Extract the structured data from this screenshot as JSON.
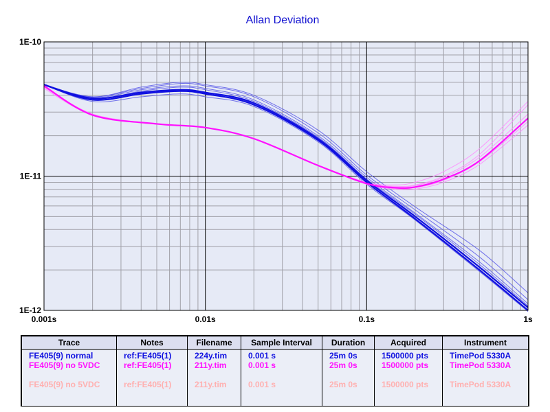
{
  "chart_data": {
    "type": "line",
    "title": "Allan Deviation",
    "x_scale": "log",
    "y_scale": "log",
    "xlim": [
      0.001,
      1
    ],
    "ylim": [
      1e-12,
      1e-10
    ],
    "x_ticks": [
      {
        "value": 0.001,
        "label": "0.001s"
      },
      {
        "value": 0.01,
        "label": "0.01s"
      },
      {
        "value": 0.1,
        "label": "0.1s"
      },
      {
        "value": 1,
        "label": "1s"
      }
    ],
    "y_ticks": [
      {
        "value": 1e-10,
        "label": "1E-10"
      },
      {
        "value": 1e-11,
        "label": "1E-11"
      },
      {
        "value": 1e-12,
        "label": "1E-12"
      }
    ],
    "grid": true,
    "colors": {
      "blue": "#1010e0",
      "blue_light": "#5a5ae8",
      "magenta": "#ff10ff",
      "magenta_light": "#ff88ff",
      "plot_bg": "#e6eaf6",
      "grid_major": "#000000",
      "grid_minor": "#a0a0a8"
    },
    "series": [
      {
        "group": "blue",
        "bold": true,
        "points": [
          [
            0.001,
            4.8e-11
          ],
          [
            0.002,
            3.8e-11
          ],
          [
            0.004,
            4.2e-11
          ],
          [
            0.007,
            4.4e-11
          ],
          [
            0.01,
            4.2e-11
          ],
          [
            0.02,
            3.5e-11
          ],
          [
            0.05,
            1.9e-11
          ],
          [
            0.1,
            9.3e-12
          ],
          [
            0.2,
            5e-12
          ],
          [
            0.5,
            2.1e-12
          ],
          [
            1,
            1.05e-12
          ]
        ]
      },
      {
        "group": "blue",
        "bold": true,
        "points": [
          [
            0.001,
            4.8e-11
          ],
          [
            0.002,
            3.7e-11
          ],
          [
            0.004,
            4.1e-11
          ],
          [
            0.007,
            4.3e-11
          ],
          [
            0.01,
            4.1e-11
          ],
          [
            0.02,
            3.4e-11
          ],
          [
            0.05,
            1.85e-11
          ],
          [
            0.1,
            9e-12
          ],
          [
            0.2,
            4.8e-12
          ],
          [
            0.5,
            2e-12
          ],
          [
            1,
            1e-12
          ]
        ]
      },
      {
        "group": "blue",
        "bold": false,
        "points": [
          [
            0.001,
            4.8e-11
          ],
          [
            0.002,
            3.9e-11
          ],
          [
            0.004,
            4.5e-11
          ],
          [
            0.007,
            4.9e-11
          ],
          [
            0.01,
            4.7e-11
          ],
          [
            0.02,
            3.9e-11
          ],
          [
            0.05,
            2.1e-11
          ],
          [
            0.1,
            1.02e-11
          ],
          [
            0.2,
            5.6e-12
          ],
          [
            0.5,
            2.5e-12
          ],
          [
            1,
            1.2e-12
          ]
        ]
      },
      {
        "group": "blue",
        "bold": false,
        "points": [
          [
            0.001,
            4.8e-11
          ],
          [
            0.002,
            3.85e-11
          ],
          [
            0.004,
            4.4e-11
          ],
          [
            0.007,
            4.7e-11
          ],
          [
            0.01,
            4.5e-11
          ],
          [
            0.02,
            3.7e-11
          ],
          [
            0.05,
            2e-11
          ],
          [
            0.1,
            9.8e-12
          ],
          [
            0.2,
            5.3e-12
          ],
          [
            0.5,
            2.3e-12
          ],
          [
            1,
            1.12e-12
          ]
        ]
      },
      {
        "group": "blue",
        "bold": false,
        "points": [
          [
            0.001,
            4.8e-11
          ],
          [
            0.002,
            3.6e-11
          ],
          [
            0.004,
            3.9e-11
          ],
          [
            0.007,
            4.1e-11
          ],
          [
            0.01,
            3.9e-11
          ],
          [
            0.02,
            3.3e-11
          ],
          [
            0.05,
            1.8e-11
          ],
          [
            0.1,
            8.7e-12
          ],
          [
            0.2,
            4.7e-12
          ],
          [
            0.5,
            1.95e-12
          ],
          [
            1,
            9.8e-13
          ]
        ]
      },
      {
        "group": "blue",
        "bold": false,
        "points": [
          [
            0.001,
            4.8e-11
          ],
          [
            0.002,
            3.75e-11
          ],
          [
            0.004,
            4.3e-11
          ],
          [
            0.007,
            4.6e-11
          ],
          [
            0.01,
            4.4e-11
          ],
          [
            0.02,
            3.6e-11
          ],
          [
            0.05,
            1.95e-11
          ],
          [
            0.1,
            9.5e-12
          ],
          [
            0.2,
            5.2e-12
          ],
          [
            0.5,
            2.2e-12
          ],
          [
            1,
            1.08e-12
          ]
        ]
      },
      {
        "group": "blue",
        "bold": false,
        "points": [
          [
            0.001,
            4.8e-11
          ],
          [
            0.002,
            3.9e-11
          ],
          [
            0.004,
            4.6e-11
          ],
          [
            0.007,
            5e-11
          ],
          [
            0.01,
            4.8e-11
          ],
          [
            0.02,
            4e-11
          ],
          [
            0.05,
            2.2e-11
          ],
          [
            0.1,
            1.08e-11
          ],
          [
            0.2,
            5.9e-12
          ],
          [
            0.5,
            2.8e-12
          ],
          [
            1,
            1.35e-12
          ]
        ]
      },
      {
        "group": "magenta",
        "bold": true,
        "points": [
          [
            0.001,
            4.7e-11
          ],
          [
            0.002,
            2.85e-11
          ],
          [
            0.005,
            2.45e-11
          ],
          [
            0.01,
            2.3e-11
          ],
          [
            0.02,
            1.9e-11
          ],
          [
            0.05,
            1.2e-11
          ],
          [
            0.1,
            8.8e-12
          ],
          [
            0.15,
            8.2e-12
          ],
          [
            0.2,
            8.3e-12
          ],
          [
            0.3,
            9.5e-12
          ],
          [
            0.5,
            1.3e-11
          ],
          [
            1,
            2.7e-11
          ]
        ]
      },
      {
        "group": "magenta",
        "bold": false,
        "points": [
          [
            0.001,
            4.6e-11
          ],
          [
            0.002,
            2.9e-11
          ],
          [
            0.005,
            2.45e-11
          ],
          [
            0.01,
            2.3e-11
          ],
          [
            0.02,
            1.9e-11
          ],
          [
            0.05,
            1.2e-11
          ],
          [
            0.1,
            8.9e-12
          ],
          [
            0.15,
            8.4e-12
          ],
          [
            0.2,
            8.6e-12
          ],
          [
            0.3,
            1e-11
          ],
          [
            0.5,
            1.45e-11
          ],
          [
            1,
            3.4e-11
          ]
        ]
      },
      {
        "group": "magenta",
        "bold": false,
        "points": [
          [
            0.001,
            4.5e-11
          ],
          [
            0.002,
            2.85e-11
          ],
          [
            0.005,
            2.45e-11
          ],
          [
            0.01,
            2.3e-11
          ],
          [
            0.02,
            1.9e-11
          ],
          [
            0.05,
            1.2e-11
          ],
          [
            0.1,
            8.7e-12
          ],
          [
            0.15,
            8e-12
          ],
          [
            0.2,
            8e-12
          ],
          [
            0.3,
            9e-12
          ],
          [
            0.5,
            1.22e-11
          ],
          [
            1,
            2.4e-11
          ]
        ]
      },
      {
        "group": "magenta",
        "bold": false,
        "points": [
          [
            0.001,
            4.7e-11
          ],
          [
            0.002,
            2.85e-11
          ],
          [
            0.005,
            2.45e-11
          ],
          [
            0.01,
            2.3e-11
          ],
          [
            0.02,
            1.9e-11
          ],
          [
            0.05,
            1.2e-11
          ],
          [
            0.1,
            8.9e-12
          ],
          [
            0.15,
            8.3e-12
          ],
          [
            0.2,
            8.5e-12
          ],
          [
            0.3,
            9.8e-12
          ],
          [
            0.5,
            1.38e-11
          ],
          [
            1,
            2.9e-11
          ]
        ]
      },
      {
        "group": "magenta",
        "bold": false,
        "points": [
          [
            0.001,
            4.6e-11
          ],
          [
            0.002,
            2.85e-11
          ],
          [
            0.005,
            2.45e-11
          ],
          [
            0.01,
            2.3e-11
          ],
          [
            0.02,
            1.9e-11
          ],
          [
            0.05,
            1.2e-11
          ],
          [
            0.1,
            8.8e-12
          ],
          [
            0.15,
            8.1e-12
          ],
          [
            0.2,
            8.2e-12
          ],
          [
            0.3,
            9.3e-12
          ],
          [
            0.5,
            1.28e-11
          ],
          [
            1,
            2.55e-11
          ]
        ]
      },
      {
        "group": "magenta",
        "bold": false,
        "points": [
          [
            0.001,
            4.7e-11
          ],
          [
            0.002,
            2.9e-11
          ],
          [
            0.005,
            2.45e-11
          ],
          [
            0.01,
            2.3e-11
          ],
          [
            0.02,
            1.9e-11
          ],
          [
            0.05,
            1.2e-11
          ],
          [
            0.1,
            9e-12
          ],
          [
            0.15,
            8.6e-12
          ],
          [
            0.2,
            9e-12
          ],
          [
            0.3,
            1.08e-11
          ],
          [
            0.5,
            1.6e-11
          ],
          [
            1,
            3.6e-11
          ]
        ]
      }
    ]
  },
  "legend": {
    "headers": [
      "Trace",
      "Notes",
      "Filename",
      "Sample Interval",
      "Duration",
      "Acquired",
      "Instrument"
    ],
    "rows": [
      {
        "color": "#1010e0",
        "cells": [
          "FE405(9) normal",
          "ref:FE405(1)",
          "224y.tim",
          "0.001 s",
          "25m 0s",
          "1500000 pts",
          "TimePod 5330A"
        ]
      },
      {
        "color": "#ff10ff",
        "cells": [
          "FE405(9) no 5VDC",
          "ref:FE405(1)",
          "211y.tim",
          "0.001 s",
          "25m 0s",
          "1500000 pts",
          "TimePod 5330A"
        ]
      },
      {
        "color": "#ebeef7",
        "cells": [
          "",
          "",
          "",
          "",
          "",
          "",
          ""
        ]
      },
      {
        "color": "#ffb0b0",
        "cells": [
          "FE405(9) no 5VDC",
          "ref:FE405(1)",
          "211y.tim",
          "0.001 s",
          "25m 0s",
          "1500000 pts",
          "TimePod 5330A"
        ]
      }
    ]
  }
}
